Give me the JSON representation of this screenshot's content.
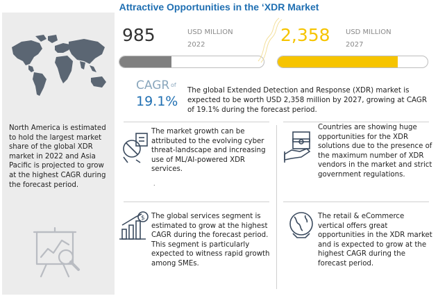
{
  "title": "Attractive Opportunities in the ‘XDR Market",
  "left_panel": {
    "summary": "North America is estimated to hold the largest market share of the global XDR market in 2022 and Asia Pacific is projected to grow at the highest CAGR during the forecast period."
  },
  "stats": {
    "start": {
      "value": "985",
      "unit": "USD MILLION",
      "year": "2022",
      "fill_fraction": 0.36,
      "color": "#808080"
    },
    "end": {
      "value": "2,358",
      "unit": "USD MILLION",
      "year": "2027",
      "fill_fraction": 0.8,
      "color": "#f6c400"
    }
  },
  "cagr": {
    "label": "CAGR",
    "of": "of",
    "value": "19.1%",
    "description": "The global Extended Detection and Response (XDR) market is expected to be worth USD 2,358 million by 2027, growing at CAGR of 19.1% during the forecast period."
  },
  "cards": [
    {
      "icon": "cyber-threat-icon",
      "text": "The market growth can be attributed to the evolving cyber threat-landscape and increasing use of ML/AI-powered XDR services."
    },
    {
      "icon": "money-hand-icon",
      "text": "Countries are showing huge opportunities for the XDR solutions due to the presence of the maximum number of XDR vendors in the market and strict government regulations."
    },
    {
      "icon": "growth-chart-icon",
      "text": "The global services segment is estimated to grow at the highest CAGR during the forecast period. This segment is particularly expected to witness rapid growth among SMEs."
    },
    {
      "icon": "globe-icon",
      "text": "The retail & eCommerce vertical offers great opportunities in the XDR market and is expected to grow at the highest CAGR during the forecast period."
    }
  ],
  "stray_mark": ".",
  "colors": {
    "title": "#1f6fb2",
    "accent_blue": "#1f6fb2",
    "gray_bar": "#808080",
    "yellow_bar": "#f6c400"
  }
}
